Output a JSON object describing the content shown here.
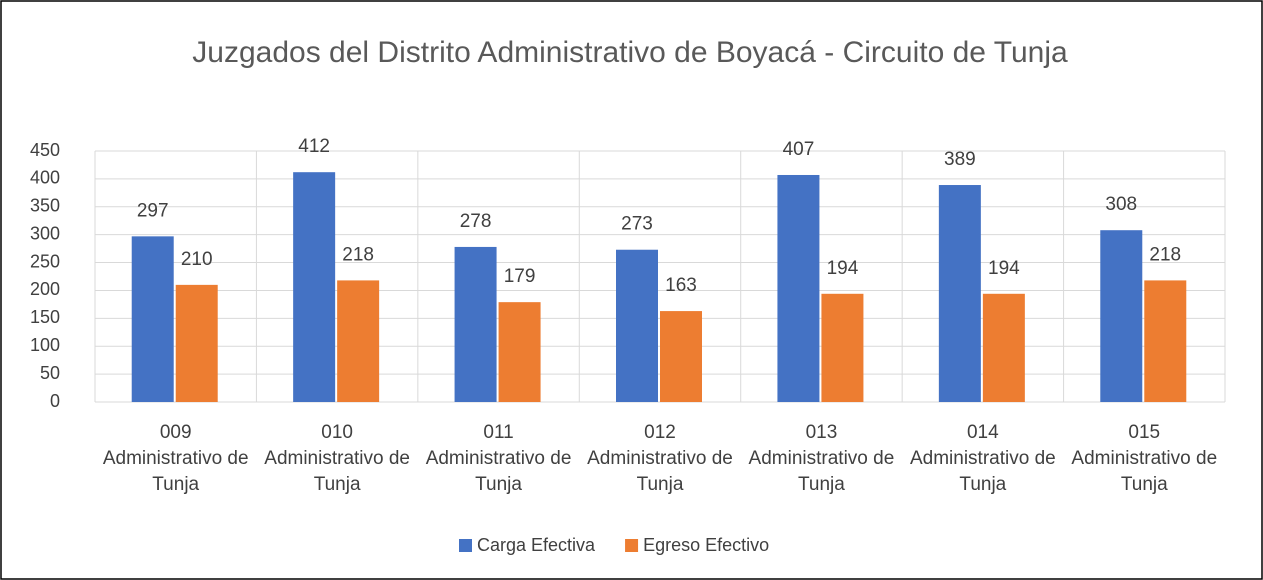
{
  "chart_data": {
    "type": "bar",
    "title": "Juzgados del Distrito Administrativo  de Boyacá - Circuito de Tunja",
    "categories": [
      "009 Administrativo de Tunja",
      "010 Administrativo de Tunja",
      "011 Administrativo de Tunja",
      "012 Administrativo de Tunja",
      "013 Administrativo de Tunja",
      "014 Administrativo de Tunja",
      "015 Administrativo de Tunja"
    ],
    "series": [
      {
        "name": "Carga Efectiva",
        "color": "#4472c4",
        "values": [
          297,
          412,
          278,
          273,
          407,
          389,
          308
        ]
      },
      {
        "name": "Egreso Efectivo",
        "color": "#ed7d31",
        "values": [
          210,
          218,
          179,
          163,
          194,
          194,
          218
        ]
      }
    ],
    "ylim": [
      0,
      450
    ],
    "yticks": [
      0,
      50,
      100,
      150,
      200,
      250,
      300,
      350,
      400,
      450
    ],
    "grid": true,
    "legend": "bottom"
  }
}
